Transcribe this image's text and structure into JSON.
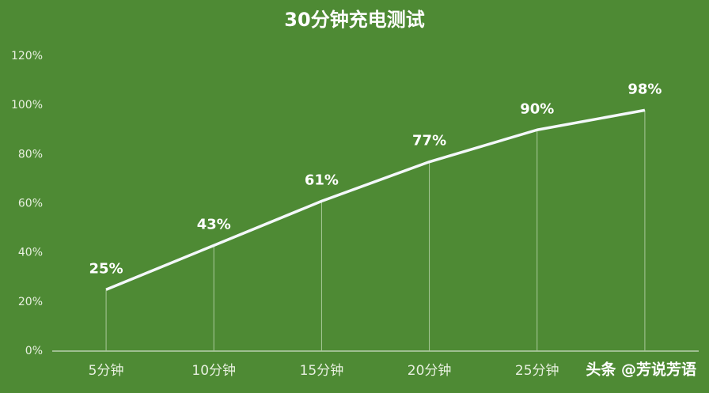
{
  "chart_data": {
    "type": "line",
    "title": "30分钟充电测试",
    "categories": [
      "5分钟",
      "10分钟",
      "15分钟",
      "20分钟",
      "25分钟",
      null
    ],
    "values": [
      25,
      43,
      61,
      77,
      90,
      98
    ],
    "value_labels": [
      "25%",
      "43%",
      "61%",
      "77%",
      "90%",
      "98%"
    ],
    "color": "#f4f8fb",
    "ylim": [
      0,
      120
    ],
    "yticks": [
      {
        "value": 0,
        "label": "0%"
      },
      {
        "value": 20,
        "label": "20%"
      },
      {
        "value": 40,
        "label": "40%"
      },
      {
        "value": 60,
        "label": "60%"
      },
      {
        "value": 80,
        "label": "80%"
      },
      {
        "value": 100,
        "label": "100%"
      },
      {
        "value": 120,
        "label": "120%"
      }
    ],
    "grid": false,
    "watermark": "头条 @芳说芳语"
  }
}
